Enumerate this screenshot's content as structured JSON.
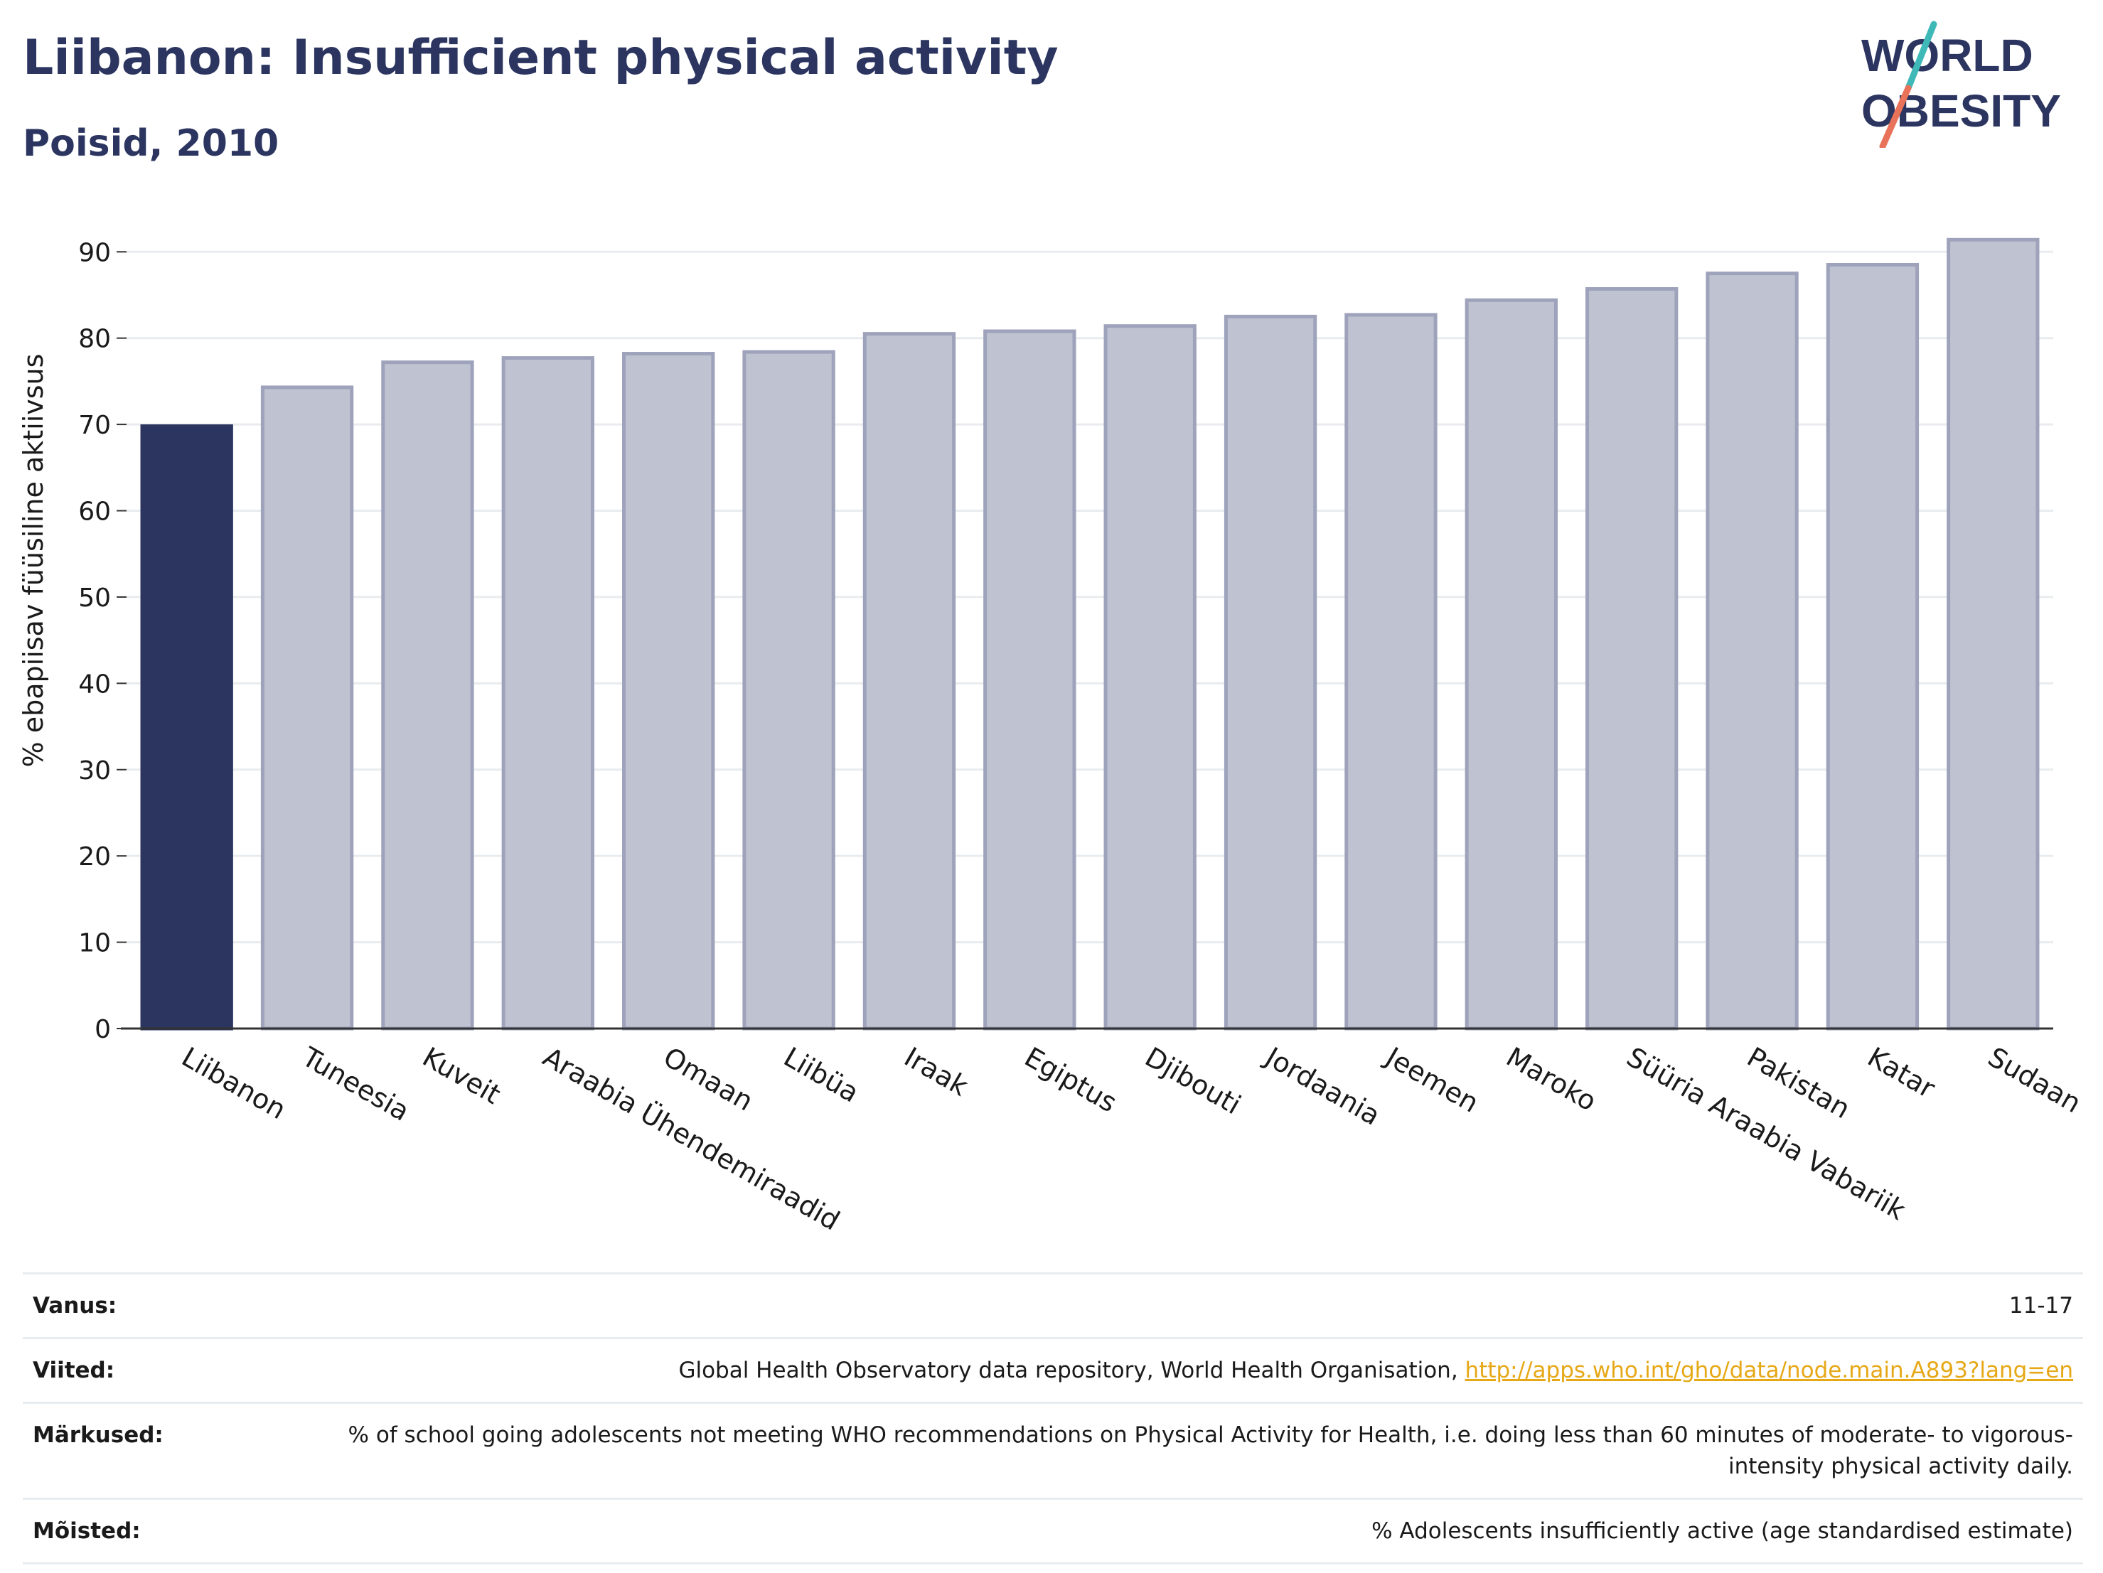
{
  "header": {
    "title": "Liibanon: Insufficient physical activity",
    "subtitle": "Poisid, 2010"
  },
  "logo": {
    "line1": "WORLD",
    "line2": "OBESITY",
    "accent_colors": [
      "#3fb8b8",
      "#e8735a"
    ]
  },
  "colors": {
    "highlight": "#2b3560",
    "bar": "#bfc2d0",
    "bar_edge": "#9ea3bb",
    "title": "#2b3560",
    "link": "#e6a817"
  },
  "chart_data": {
    "type": "bar",
    "title": "Liibanon: Insufficient physical activity",
    "subtitle": "Poisid, 2010",
    "xlabel": "",
    "ylabel": "% ebapiisav füüsiline aktiivsus",
    "categories": [
      "Liibanon",
      "Tuneesia",
      "Kuveit",
      "Araabia Ühendemiraadid",
      "Omaan",
      "Liibüa",
      "Iraak",
      "Egiptus",
      "Djibouti",
      "Jordaania",
      "Jeemen",
      "Maroko",
      "Süüria Araabia Vabariik",
      "Pakistan",
      "Katar",
      "Sudaan"
    ],
    "values": [
      69.8,
      74.3,
      77.2,
      77.7,
      78.2,
      78.4,
      80.5,
      80.8,
      81.4,
      82.5,
      82.7,
      84.4,
      85.7,
      87.5,
      88.5,
      91.4
    ],
    "highlight_index": 0,
    "ylim": [
      0,
      92
    ],
    "yticks": [
      0,
      10,
      20,
      30,
      40,
      50,
      60,
      70,
      80,
      90
    ],
    "grid": true
  },
  "info": [
    {
      "label": "Vanus:",
      "value": "11-17"
    },
    {
      "label": "Viited:",
      "value": "Global Health Observatory data repository, World Health Organisation, ",
      "link": "http://apps.who.int/gho/data/node.main.A893?lang=en"
    },
    {
      "label": "Märkused:",
      "value": "% of school going adolescents not meeting WHO recommendations on Physical Activity for Health, i.e. doing less than 60 minutes of moderate- to vigorous-intensity physical activity daily."
    },
    {
      "label": "Mõisted:",
      "value": "% Adolescents insufficiently active (age standardised estimate)"
    }
  ]
}
